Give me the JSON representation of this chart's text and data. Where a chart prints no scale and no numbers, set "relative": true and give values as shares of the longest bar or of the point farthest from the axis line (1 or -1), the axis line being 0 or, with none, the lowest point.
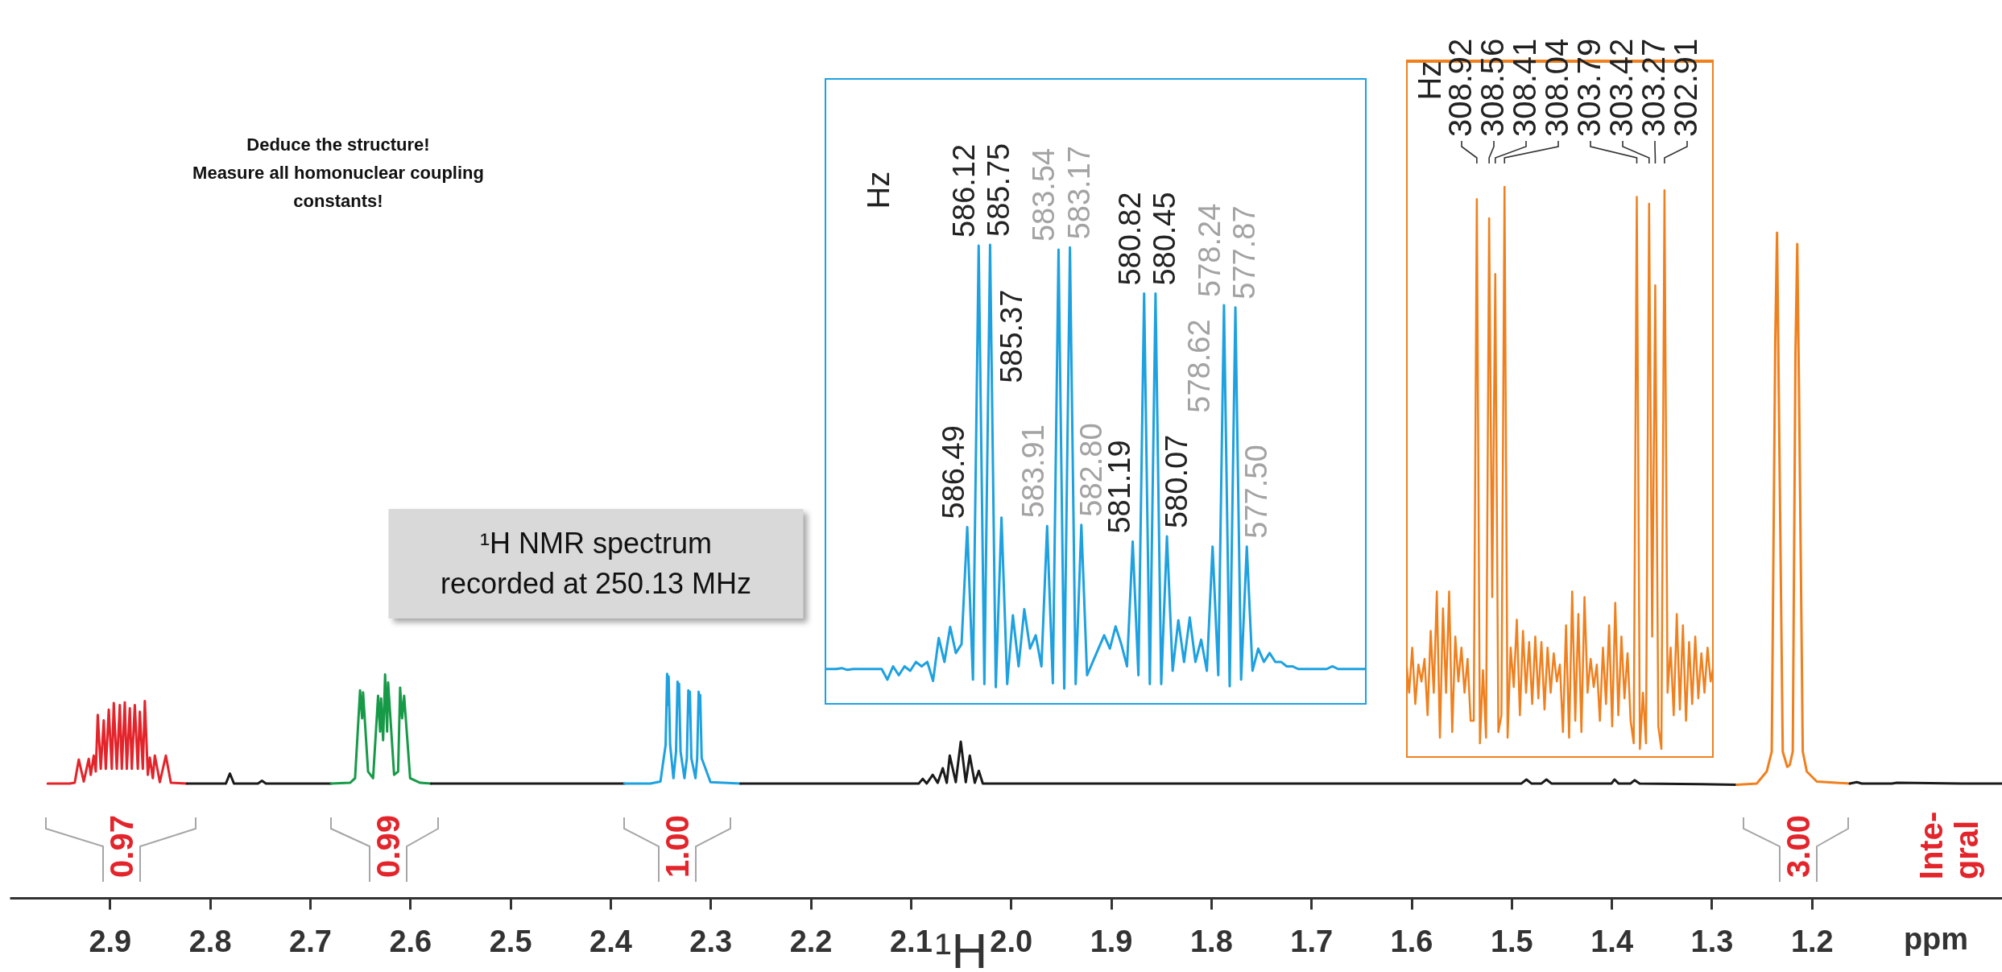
{
  "chart_data": [
    {
      "type": "line",
      "relative": true,
      "title": "Deduce the structure!\nMeasure all homonuclear coupling\nconstants!",
      "xlabel": "¹H",
      "xlim": [
        3.0,
        1.01
      ],
      "xticks": [
        2.9,
        2.8,
        2.7,
        2.6,
        2.5,
        2.4,
        2.3,
        2.2,
        2.1,
        {
          "value": 2.0,
          "label": "2.0"
        },
        1.9,
        1.8,
        1.7,
        1.6,
        1.5,
        1.4,
        1.3,
        1.2
      ],
      "series": [
        {
          "color": "#e3242b",
          "x": [
            2.962,
            2.94,
            2.935,
            2.931,
            2.926,
            2.921,
            2.919,
            2.916,
            2.914,
            2.912,
            2.909,
            2.906,
            2.904,
            2.901,
            2.898,
            2.896,
            2.893,
            2.89,
            2.888,
            2.885,
            2.883,
            2.88,
            2.878,
            2.875,
            2.872,
            2.87,
            2.867,
            2.865,
            2.862,
            2.86,
            2.857,
            2.855,
            2.85,
            2.844,
            2.839,
            2.823
          ],
          "values": [
            0.172,
            0.172,
            0.173,
            0.208,
            0.175,
            0.209,
            0.185,
            0.214,
            0.19,
            0.275,
            0.194,
            0.267,
            0.194,
            0.283,
            0.194,
            0.293,
            0.194,
            0.29,
            0.194,
            0.294,
            0.194,
            0.285,
            0.194,
            0.29,
            0.194,
            0.28,
            0.194,
            0.296,
            0.185,
            0.211,
            0.18,
            0.214,
            0.174,
            0.214,
            0.173,
            0.172
          ]
        },
        {
          "color": "#1a1a1a",
          "x": [
            2.823,
            2.784,
            2.78,
            2.776,
            2.752,
            2.748,
            2.744,
            2.679
          ],
          "values": [
            0.172,
            0.172,
            0.187,
            0.172,
            0.172,
            0.176,
            0.172,
            0.172
          ]
        },
        {
          "color": "#179a48",
          "x": [
            2.679,
            2.66,
            2.655,
            2.65,
            2.648,
            2.647,
            2.642,
            2.637,
            2.632,
            2.63,
            2.629,
            2.627,
            2.625,
            2.623,
            2.622,
            2.616,
            2.612,
            2.61,
            2.608,
            2.606,
            2.6,
            2.59,
            2.579
          ],
          "values": [
            0.172,
            0.173,
            0.18,
            0.312,
            0.27,
            0.309,
            0.19,
            0.18,
            0.304,
            0.25,
            0.3,
            0.237,
            0.336,
            0.25,
            0.324,
            0.185,
            0.19,
            0.316,
            0.27,
            0.304,
            0.18,
            0.173,
            0.172
          ]
        },
        {
          "color": "#1a1a1a",
          "x": [
            2.579,
            2.386
          ],
          "values": [
            0.172,
            0.172
          ]
        },
        {
          "color": "#1da1e0",
          "x": [
            2.386,
            2.36,
            2.35,
            2.3448,
            2.3433,
            2.3426,
            2.3418,
            2.3403,
            2.337,
            2.3344,
            2.3329,
            2.3322,
            2.3314,
            2.3299,
            2.326,
            2.3236,
            2.3221,
            2.3214,
            2.3206,
            2.3191,
            2.315,
            2.3133,
            2.3118,
            2.3111,
            2.3103,
            2.3088,
            2.3,
            2.27
          ],
          "values": [
            0.172,
            0.172,
            0.175,
            0.23,
            0.337,
            0.29,
            0.333,
            0.23,
            0.18,
            0.22,
            0.325,
            0.29,
            0.322,
            0.22,
            0.18,
            0.21,
            0.312,
            0.28,
            0.31,
            0.21,
            0.18,
            0.21,
            0.31,
            0.28,
            0.305,
            0.21,
            0.174,
            0.172
          ]
        },
        {
          "color": "#1a1a1a",
          "x": [
            2.27,
            2.092,
            2.088,
            2.084,
            2.078,
            2.073,
            2.068,
            2.064,
            2.061,
            2.055,
            2.05,
            2.045,
            2.041,
            2.036,
            2.032,
            2.028,
            1.49,
            1.485,
            1.48,
            1.47,
            1.465,
            1.46,
            1.4,
            1.397,
            1.393,
            1.381,
            1.377,
            1.372,
            1.31,
            1.275
          ],
          "values": [
            0.172,
            0.172,
            0.179,
            0.172,
            0.185,
            0.173,
            0.195,
            0.173,
            0.214,
            0.174,
            0.235,
            0.174,
            0.214,
            0.173,
            0.191,
            0.172,
            0.172,
            0.178,
            0.172,
            0.172,
            0.178,
            0.172,
            0.172,
            0.178,
            0.172,
            0.172,
            0.177,
            0.172,
            0.171,
            0.17
          ]
        },
        {
          "color": "#f0801e",
          "x": [
            1.275,
            1.255,
            1.245,
            1.24,
            1.2365,
            1.2347,
            1.2329,
            1.229,
            1.2245,
            1.222,
            1.219,
            1.2163,
            1.2145,
            1.2126,
            1.209,
            1.205,
            1.195,
            1.162
          ],
          "values": [
            0.17,
            0.172,
            0.19,
            0.22,
            0.834,
            1.0,
            0.752,
            0.22,
            0.197,
            0.2,
            0.22,
            0.818,
            0.983,
            0.743,
            0.22,
            0.19,
            0.175,
            0.172
          ]
        },
        {
          "color": "#1a1a1a",
          "x": [
            1.162,
            1.155,
            1.15,
            1.12,
            1.115,
            1.05,
            1.01
          ],
          "values": [
            0.172,
            0.174,
            0.172,
            0.172,
            0.173,
            0.172,
            0.172
          ]
        }
      ],
      "annotations": [
        "0.97",
        "0.99",
        "1.00",
        "3.00",
        "Inte-\ngral",
        "ppm",
        "¹H NMR spectrum\nrecorded at 250.13 MHz"
      ]
    },
    {
      "type": "line",
      "relative": true,
      "categories": [
        null,
        null,
        null,
        null,
        null,
        null,
        null,
        null,
        null,
        null,
        null,
        null,
        null,
        null,
        null,
        null,
        null,
        null,
        null,
        null,
        null,
        null,
        null,
        null,
        null,
        null,
        null,
        null,
        null,
        null,
        null,
        null,
        null,
        null,
        null,
        null,
        null,
        null,
        null,
        null,
        null,
        null,
        null,
        null,
        null,
        null,
        null,
        null,
        null,
        null,
        null,
        null,
        null,
        null,
        null,
        null,
        null,
        null,
        null,
        null,
        null,
        null,
        null,
        null,
        null,
        null,
        null,
        null,
        null,
        null,
        null,
        null,
        null,
        null,
        null,
        null,
        null,
        null,
        null,
        null,
        null,
        null,
        null,
        null,
        null,
        null,
        null,
        null,
        null,
        null,
        null,
        null,
        null,
        null,
        null,
        null
      ],
      "series": [
        {
          "color": "#1da1e0",
          "values": [
            0.044,
            0.044,
            0.044,
            0.046,
            0.042,
            0.044,
            0.044,
            0.044,
            0.044,
            0.044,
            0.044,
            0.02,
            0.05,
            0.03,
            0.05,
            0.04,
            0.06,
            0.05,
            0.06,
            0.017,
            0.114,
            0.06,
            0.139,
            0.08,
            0.1,
            0.364,
            0.02,
            0.998,
            0.01,
            1.0,
            0.003,
            0.385,
            0.01,
            0.165,
            0.05,
            0.179,
            0.09,
            0.12,
            0.05,
            0.366,
            0.012,
            0.989,
            0.0,
            0.994,
            0.01,
            0.369,
            0.03,
            0.06,
            0.09,
            0.12,
            0.09,
            0.14,
            0.1,
            0.05,
            0.331,
            0.03,
            0.89,
            0.01,
            0.89,
            0.01,
            0.343,
            0.04,
            0.154,
            0.06,
            0.16,
            0.06,
            0.11,
            0.04,
            0.32,
            0.03,
            0.864,
            0.005,
            0.859,
            0.02,
            0.32,
            0.04,
            0.09,
            0.06,
            0.08,
            0.06,
            0.06,
            0.05,
            0.05,
            0.044,
            0.044,
            0.044,
            0.044,
            0.044,
            0.044,
            0.05,
            0.044,
            0.044,
            0.044,
            0.044,
            0.044,
            0.044
          ]
        }
      ],
      "annotations": [
        "Hz",
        "586.49",
        "586.12",
        "585.75",
        "585.37",
        "583.91",
        "583.54",
        "583.17",
        "582.80",
        "581.19",
        "580.82",
        "580.45",
        "580.07",
        "578.62",
        "578.24",
        "577.87",
        "577.50"
      ]
    },
    {
      "type": "line",
      "relative": true,
      "categories": [
        null,
        null,
        null,
        null,
        null,
        null,
        null,
        null,
        null,
        null,
        null,
        null,
        null,
        null,
        null,
        null,
        null,
        null,
        null,
        null,
        null,
        null,
        null,
        null,
        null,
        null,
        null,
        null,
        null,
        null,
        null,
        null,
        null,
        null,
        null,
        null,
        null,
        null,
        null,
        null,
        null,
        null,
        null,
        null,
        null,
        null,
        null,
        null,
        null,
        null,
        null,
        null,
        null,
        null,
        null,
        null,
        null,
        null,
        null,
        null,
        null,
        null,
        null,
        null,
        null,
        null,
        null,
        null,
        null,
        null,
        null,
        null,
        null,
        null,
        null,
        null,
        null,
        null,
        null,
        null,
        null,
        null,
        null,
        null,
        null,
        null,
        null,
        null,
        null,
        null,
        null,
        null,
        null,
        null,
        null,
        null,
        null,
        null,
        null,
        null,
        null
      ],
      "series": [
        {
          "color": "#f0801e",
          "values": [
            0.16,
            0.1,
            0.18,
            0.08,
            0.15,
            0.12,
            0.16,
            0.06,
            0.21,
            0.1,
            0.28,
            0.02,
            0.25,
            0.1,
            0.28,
            0.03,
            0.2,
            0.12,
            0.18,
            0.1,
            0.16,
            0.05,
            0.05,
            0.978,
            0.01,
            0.14,
            0.02,
            0.944,
            0.27,
            0.845,
            0.03,
            0.06,
            1.0,
            0.02,
            0.18,
            0.11,
            0.23,
            0.06,
            0.21,
            0.1,
            0.19,
            0.08,
            0.2,
            0.09,
            0.19,
            0.07,
            0.18,
            0.1,
            0.17,
            0.12,
            0.15,
            0.03,
            0.22,
            0.02,
            0.28,
            0.05,
            0.24,
            0.03,
            0.27,
            0.1,
            0.16,
            0.11,
            0.15,
            0.05,
            0.18,
            0.08,
            0.22,
            0.04,
            0.26,
            0.06,
            0.2,
            0.09,
            0.17,
            0.05,
            0.01,
            0.982,
            0.0,
            0.1,
            0.01,
            0.97,
            0.2,
            0.825,
            0.04,
            0.0,
            0.994,
            0.1,
            0.18,
            0.06,
            0.24,
            0.07,
            0.22,
            0.05,
            0.19,
            0.08,
            0.2,
            0.09,
            0.17,
            0.1,
            0.18,
            0.12,
            0.15
          ]
        }
      ],
      "annotations": [
        "Hz",
        "308.92",
        "308.56",
        "308.41",
        "308.04",
        "303.79",
        "303.42",
        "303.27",
        "302.91"
      ]
    }
  ]
}
